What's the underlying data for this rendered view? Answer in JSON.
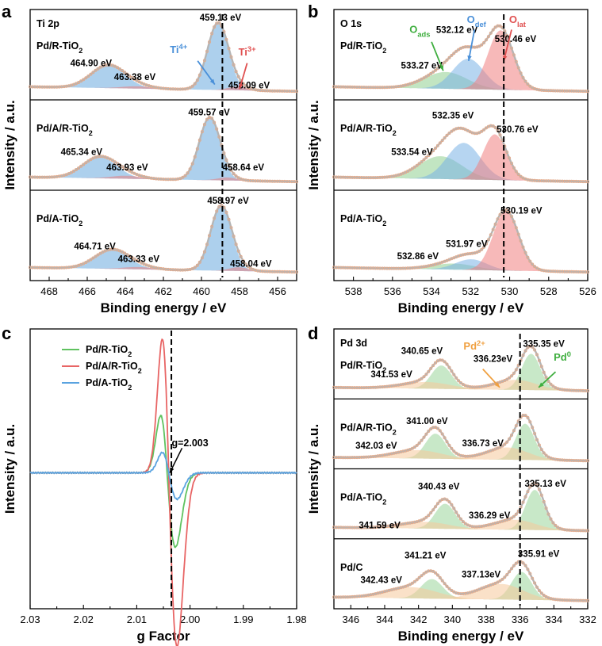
{
  "panels": [
    {
      "id": "a",
      "letter": "a",
      "type": "xps",
      "xlabel": "Binding energy / eV",
      "ylabel": "Intensity / a.u.",
      "xlim": [
        469,
        455
      ],
      "xticks": [
        468,
        466,
        464,
        462,
        460,
        458,
        456
      ],
      "region_label": "Ti 2p",
      "dashed_line_x": 458.9,
      "subplots": [
        {
          "sample": "Pd/R-TiO2",
          "baseline": 0.05,
          "components": [
            {
              "name": "Ti4+",
              "center": 459.13,
              "height": 0.88,
              "width": 0.55,
              "color": "#6aa9df"
            },
            {
              "name": "Ti4+ 2p1/2",
              "center": 464.9,
              "height": 0.3,
              "width": 0.9,
              "color": "#6aa9df"
            },
            {
              "name": "Ti3+",
              "center": 458.09,
              "height": 0.05,
              "width": 0.5,
              "color": "#e88080"
            },
            {
              "name": "Ti3+ 2p1/2",
              "center": 463.38,
              "height": 0.03,
              "width": 0.8,
              "color": "#e88080"
            }
          ],
          "labels": [
            {
              "text": "459.13 eV",
              "x": 459.0,
              "y": 0.98
            },
            {
              "text": "464.90 eV",
              "x": 465.8,
              "y": 0.38
            },
            {
              "text": "463.38 eV",
              "x": 463.5,
              "y": 0.2
            },
            {
              "text": "458.09 eV",
              "x": 457.5,
              "y": 0.09
            }
          ],
          "annotations": [
            {
              "text": "Ti4+",
              "color": "#4a90d9",
              "x": 461.2,
              "y": 0.55,
              "ax": 460.2,
              "ay": 0.45,
              "bx": 459.3,
              "by": 0.14
            },
            {
              "text": "Ti3+",
              "color": "#e05050",
              "x": 457.6,
              "y": 0.52,
              "ax": 457.6,
              "ay": 0.42,
              "bx": 458.0,
              "by": 0.08
            }
          ]
        },
        {
          "sample": "Pd/A/R-TiO2",
          "baseline": 0.05,
          "components": [
            {
              "name": "Ti4+",
              "center": 459.57,
              "height": 0.82,
              "width": 0.55,
              "color": "#6aa9df"
            },
            {
              "name": "Ti4+ 2p1/2",
              "center": 465.34,
              "height": 0.28,
              "width": 0.9,
              "color": "#6aa9df"
            },
            {
              "name": "Ti3+",
              "center": 458.64,
              "height": 0.04,
              "width": 0.5,
              "color": "#e88080"
            },
            {
              "name": "Ti3+ 2p1/2",
              "center": 463.93,
              "height": 0.04,
              "width": 0.8,
              "color": "#e88080"
            }
          ],
          "labels": [
            {
              "text": "459.57 eV",
              "x": 459.6,
              "y": 0.92
            },
            {
              "text": "465.34 eV",
              "x": 466.3,
              "y": 0.4
            },
            {
              "text": "463.93 eV",
              "x": 463.9,
              "y": 0.2
            },
            {
              "text": "458.64 eV",
              "x": 457.8,
              "y": 0.2
            }
          ],
          "annotations": []
        },
        {
          "sample": "Pd/A-TiO2",
          "baseline": 0.05,
          "components": [
            {
              "name": "Ti4+",
              "center": 458.97,
              "height": 0.85,
              "width": 0.55,
              "color": "#6aa9df"
            },
            {
              "name": "Ti4+ 2p1/2",
              "center": 464.71,
              "height": 0.25,
              "width": 0.9,
              "color": "#6aa9df"
            },
            {
              "name": "Ti3+",
              "center": 458.04,
              "height": 0.05,
              "width": 0.5,
              "color": "#e88080"
            },
            {
              "name": "Ti3+ 2p1/2",
              "center": 463.33,
              "height": 0.03,
              "width": 0.8,
              "color": "#e88080"
            }
          ],
          "labels": [
            {
              "text": "458.97 eV",
              "x": 458.6,
              "y": 0.95
            },
            {
              "text": "464.71 eV",
              "x": 465.6,
              "y": 0.35
            },
            {
              "text": "463.33 eV",
              "x": 463.3,
              "y": 0.18
            },
            {
              "text": "458.04 eV",
              "x": 457.4,
              "y": 0.12
            }
          ],
          "annotations": []
        }
      ]
    },
    {
      "id": "b",
      "letter": "b",
      "type": "xps",
      "xlabel": "Binding energy / eV",
      "ylabel": "Intensity / a.u.",
      "xlim": [
        539,
        526
      ],
      "xticks": [
        538,
        536,
        534,
        532,
        530,
        528,
        526
      ],
      "region_label": "O 1s",
      "dashed_line_x": 530.3,
      "subplots": [
        {
          "sample": "Pd/R-TiO2",
          "baseline": 0.05,
          "components": [
            {
              "name": "Oads",
              "center": 533.27,
              "height": 0.22,
              "width": 1.1,
              "color": "#90d090"
            },
            {
              "name": "Odef",
              "center": 532.12,
              "height": 0.4,
              "width": 0.8,
              "color": "#7ab3e6"
            },
            {
              "name": "Olat",
              "center": 530.46,
              "height": 0.78,
              "width": 0.65,
              "color": "#f08080"
            }
          ],
          "labels": [
            {
              "text": "532.12 eV",
              "x": 532.7,
              "y": 0.82
            },
            {
              "text": "533.27 eV",
              "x": 534.5,
              "y": 0.35
            },
            {
              "text": "530.46 eV",
              "x": 529.7,
              "y": 0.7
            }
          ],
          "annotations": [
            {
              "text": "Oads",
              "color": "#3fae3f",
              "x": 534.6,
              "y": 0.82,
              "ax": 534.0,
              "ay": 0.7,
              "bx": 533.4,
              "by": 0.32
            },
            {
              "text": "Odef",
              "color": "#4a90d9",
              "x": 531.7,
              "y": 0.95,
              "ax": 531.8,
              "ay": 0.86,
              "bx": 532.1,
              "by": 0.45
            },
            {
              "text": "Olat",
              "color": "#e05050",
              "x": 529.6,
              "y": 0.95,
              "ax": 529.9,
              "ay": 0.86,
              "bx": 530.3,
              "by": 0.45
            }
          ]
        },
        {
          "sample": "Pd/A/R-TiO2",
          "baseline": 0.05,
          "components": [
            {
              "name": "Oads",
              "center": 533.54,
              "height": 0.3,
              "width": 1.1,
              "color": "#90d090"
            },
            {
              "name": "Odef",
              "center": 532.35,
              "height": 0.48,
              "width": 0.85,
              "color": "#7ab3e6"
            },
            {
              "name": "Olat",
              "center": 530.76,
              "height": 0.6,
              "width": 0.6,
              "color": "#f08080"
            }
          ],
          "labels": [
            {
              "text": "532.35 eV",
              "x": 532.9,
              "y": 0.88
            },
            {
              "text": "533.54 eV",
              "x": 535.0,
              "y": 0.4
            },
            {
              "text": "530.76 eV",
              "x": 529.6,
              "y": 0.7
            }
          ],
          "annotations": []
        },
        {
          "sample": "Pd/A-TiO2",
          "baseline": 0.05,
          "components": [
            {
              "name": "Oads",
              "center": 532.86,
              "height": 0.08,
              "width": 1.1,
              "color": "#90d090"
            },
            {
              "name": "Odef",
              "center": 531.97,
              "height": 0.14,
              "width": 0.8,
              "color": "#7ab3e6"
            },
            {
              "name": "Olat",
              "center": 530.19,
              "height": 0.78,
              "width": 0.65,
              "color": "#f08080"
            }
          ],
          "labels": [
            {
              "text": "530.19 eV",
              "x": 529.4,
              "y": 0.82
            },
            {
              "text": "531.97 eV",
              "x": 532.2,
              "y": 0.38
            },
            {
              "text": "532.86 eV",
              "x": 534.7,
              "y": 0.22
            }
          ],
          "annotations": []
        }
      ]
    },
    {
      "id": "c",
      "letter": "c",
      "type": "epr",
      "xlabel": "g Factor",
      "ylabel": "Intensity / a.u.",
      "xlim": [
        2.03,
        1.98
      ],
      "xticks": [
        2.03,
        2.02,
        2.01,
        2.0,
        1.99,
        1.98
      ],
      "xtick_labels": [
        "2.03",
        "2.02",
        "2.01",
        "2.00",
        "1.99",
        "1.98"
      ],
      "dashed_line_x": 2.0035,
      "annotation": {
        "text": "g=2.003",
        "x": 2.0,
        "y": 0.28,
        "ax": 2.0015,
        "ay": 0.26,
        "bx": 2.0038,
        "by": 0.0
      },
      "legend": {
        "position": "top-left",
        "entries": [
          "Pd/R-TiO2",
          "Pd/A/R-TiO2",
          "Pd/A-TiO2"
        ]
      },
      "series": [
        {
          "name": "Pd/R-TiO2",
          "color": "#5fc25f",
          "amp": 0.62,
          "center": 2.0043,
          "width": 0.0012,
          "tail": 0.2
        },
        {
          "name": "Pd/A/R-TiO2",
          "color": "#e86565",
          "amp": 1.45,
          "center": 2.004,
          "width": 0.0012,
          "tail": 0.4
        },
        {
          "name": "Pd/A-TiO2",
          "color": "#5aa3e0",
          "amp": 0.22,
          "center": 2.004,
          "width": 0.0012,
          "tail": 0.1
        }
      ]
    },
    {
      "id": "d",
      "letter": "d",
      "type": "xps",
      "xlabel": "Binding energy / eV",
      "ylabel": "Intensity / a.u.",
      "xlim": [
        347,
        332
      ],
      "xticks": [
        346,
        344,
        342,
        340,
        338,
        336,
        334,
        332
      ],
      "region_label": "Pd 3d",
      "dashed_line_x": 336.0,
      "subplots": [
        {
          "sample": "Pd/R-TiO2",
          "baseline": 0.06,
          "components": [
            {
              "name": "Pd0 3d5/2",
              "center": 335.35,
              "height": 0.65,
              "width": 0.55,
              "color": "#9ad69a"
            },
            {
              "name": "Pd0 3d3/2",
              "center": 340.65,
              "height": 0.42,
              "width": 0.6,
              "color": "#9ad69a"
            },
            {
              "name": "Pd2+ 3d5/2",
              "center": 336.23,
              "height": 0.18,
              "width": 1.2,
              "color": "#f5c89a"
            },
            {
              "name": "Pd2+ 3d3/2",
              "center": 341.53,
              "height": 0.12,
              "width": 1.4,
              "color": "#f5c89a"
            }
          ],
          "labels": [
            {
              "text": "340.65 eV",
              "x": 341.8,
              "y": 0.72
            },
            {
              "text": "336.23eV",
              "x": 337.6,
              "y": 0.58
            },
            {
              "text": "335.35 eV",
              "x": 334.6,
              "y": 0.85
            },
            {
              "text": "341.53 eV",
              "x": 343.6,
              "y": 0.3
            }
          ],
          "annotations": [
            {
              "text": "Pd2+",
              "color": "#f0a040",
              "x": 338.7,
              "y": 0.8,
              "ax": 338.2,
              "ay": 0.45,
              "bx": 337.2,
              "by": 0.12
            },
            {
              "text": "Pd0",
              "color": "#3fae3f",
              "x": 333.5,
              "y": 0.6,
              "ax": 333.9,
              "ay": 0.4,
              "bx": 334.9,
              "by": 0.12
            }
          ]
        },
        {
          "sample": "Pd/A/R-TiO2",
          "baseline": 0.06,
          "components": [
            {
              "name": "Pd0 3d5/2",
              "center": 335.7,
              "height": 0.65,
              "width": 0.55,
              "color": "#9ad69a"
            },
            {
              "name": "Pd0 3d3/2",
              "center": 341.0,
              "height": 0.45,
              "width": 0.6,
              "color": "#9ad69a"
            },
            {
              "name": "Pd2+ 3d5/2",
              "center": 336.73,
              "height": 0.22,
              "width": 1.2,
              "color": "#f5c89a"
            },
            {
              "name": "Pd2+ 3d3/2",
              "center": 342.03,
              "height": 0.15,
              "width": 1.4,
              "color": "#f5c89a"
            }
          ],
          "labels": [
            {
              "text": "341.00 eV",
              "x": 341.5,
              "y": 0.72
            },
            {
              "text": "336.73 eV",
              "x": 338.2,
              "y": 0.32
            },
            {
              "text": "342.03 eV",
              "x": 344.5,
              "y": 0.28
            }
          ],
          "annotations": []
        },
        {
          "sample": "Pd/A-TiO2",
          "baseline": 0.06,
          "components": [
            {
              "name": "Pd0 3d5/2",
              "center": 335.13,
              "height": 0.72,
              "width": 0.55,
              "color": "#9ad69a"
            },
            {
              "name": "Pd0 3d3/2",
              "center": 340.43,
              "height": 0.45,
              "width": 0.6,
              "color": "#9ad69a"
            },
            {
              "name": "Pd2+ 3d5/2",
              "center": 336.29,
              "height": 0.18,
              "width": 1.2,
              "color": "#f5c89a"
            },
            {
              "name": "Pd2+ 3d3/2",
              "center": 341.59,
              "height": 0.12,
              "width": 1.4,
              "color": "#f5c89a"
            }
          ],
          "labels": [
            {
              "text": "340.43 eV",
              "x": 340.8,
              "y": 0.8
            },
            {
              "text": "335.13 eV",
              "x": 334.5,
              "y": 0.85
            },
            {
              "text": "336.29 eV",
              "x": 337.8,
              "y": 0.28
            },
            {
              "text": "341.59 eV",
              "x": 344.3,
              "y": 0.1
            }
          ],
          "annotations": []
        },
        {
          "sample": "Pd/C",
          "baseline": 0.06,
          "components": [
            {
              "name": "Pd0 3d5/2",
              "center": 335.91,
              "height": 0.5,
              "width": 0.6,
              "color": "#9ad69a"
            },
            {
              "name": "Pd0 3d3/2",
              "center": 341.21,
              "height": 0.35,
              "width": 0.65,
              "color": "#9ad69a"
            },
            {
              "name": "Pd2+ 3d5/2",
              "center": 337.13,
              "height": 0.28,
              "width": 1.3,
              "color": "#f5c89a"
            },
            {
              "name": "Pd2+ 3d3/2",
              "center": 342.43,
              "height": 0.2,
              "width": 1.5,
              "color": "#f5c89a"
            }
          ],
          "labels": [
            {
              "text": "341.21 eV",
              "x": 341.6,
              "y": 0.82
            },
            {
              "text": "335.91 eV",
              "x": 334.9,
              "y": 0.85
            },
            {
              "text": "337.13eV",
              "x": 338.3,
              "y": 0.48
            },
            {
              "text": "342.43 eV",
              "x": 344.2,
              "y": 0.38
            }
          ],
          "annotations": []
        }
      ]
    }
  ],
  "chart_data": [
    {
      "type": "line",
      "panel": "a",
      "title": "",
      "xlabel": "Binding energy / eV",
      "ylabel": "Intensity / a.u.",
      "xlim": [
        469,
        455
      ],
      "series": [
        {
          "name": "Pd/R-TiO2",
          "peaks": [
            459.13,
            464.9,
            463.38,
            458.09
          ]
        },
        {
          "name": "Pd/A/R-TiO2",
          "peaks": [
            459.57,
            465.34,
            463.93,
            458.64
          ]
        },
        {
          "name": "Pd/A-TiO2",
          "peaks": [
            458.97,
            464.71,
            463.33,
            458.04
          ]
        }
      ]
    },
    {
      "type": "line",
      "panel": "b",
      "title": "",
      "xlabel": "Binding energy / eV",
      "ylabel": "Intensity / a.u.",
      "xlim": [
        539,
        526
      ],
      "series": [
        {
          "name": "Pd/R-TiO2",
          "peaks": [
            533.27,
            532.12,
            530.46
          ]
        },
        {
          "name": "Pd/A/R-TiO2",
          "peaks": [
            533.54,
            532.35,
            530.76
          ]
        },
        {
          "name": "Pd/A-TiO2",
          "peaks": [
            532.86,
            531.97,
            530.19
          ]
        }
      ]
    },
    {
      "type": "line",
      "panel": "c",
      "title": "",
      "xlabel": "g Factor",
      "ylabel": "Intensity / a.u.",
      "xlim": [
        2.03,
        1.98
      ],
      "series": [
        {
          "name": "Pd/R-TiO2",
          "g_center": 2.003
        },
        {
          "name": "Pd/A/R-TiO2",
          "g_center": 2.003
        },
        {
          "name": "Pd/A-TiO2",
          "g_center": 2.003
        }
      ]
    },
    {
      "type": "line",
      "panel": "d",
      "title": "",
      "xlabel": "Binding energy / eV",
      "ylabel": "Intensity / a.u.",
      "xlim": [
        347,
        332
      ],
      "series": [
        {
          "name": "Pd/R-TiO2",
          "peaks": [
            340.65,
            335.35,
            341.53,
            336.23
          ]
        },
        {
          "name": "Pd/A/R-TiO2",
          "peaks": [
            341.0,
            335.7,
            342.03,
            336.73
          ]
        },
        {
          "name": "Pd/A-TiO2",
          "peaks": [
            340.43,
            335.13,
            341.59,
            336.29
          ]
        },
        {
          "name": "Pd/C",
          "peaks": [
            341.21,
            335.91,
            342.43,
            337.13
          ]
        }
      ]
    }
  ]
}
